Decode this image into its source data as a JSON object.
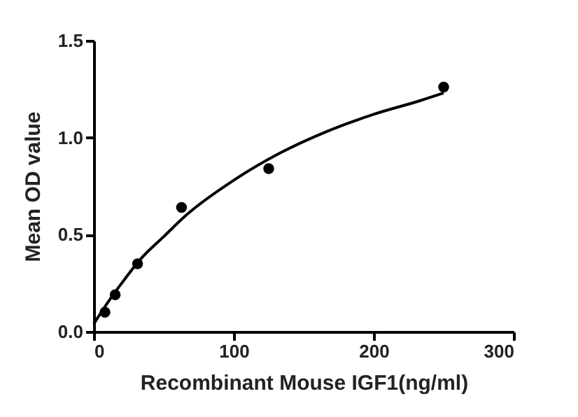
{
  "chart_data": {
    "type": "scatter",
    "xlabel": "Recombinant Mouse IGF1(ng/ml)",
    "ylabel": "Mean OD value",
    "xlim": [
      0,
      300
    ],
    "xticks": [
      0,
      100,
      200,
      300
    ],
    "ylim": [
      0,
      1.5
    ],
    "yticks": [
      {
        "value": 0,
        "label": "0.0"
      },
      0.5,
      {
        "value": 1,
        "label": "1.0"
      },
      1.5
    ],
    "grid": false,
    "series": [
      {
        "color": "#000000",
        "marker": "circle",
        "x": [
          8,
          15.3,
          31.3,
          62.7,
          125,
          250
        ],
        "values": [
          0.1,
          0.19,
          0.35,
          0.64,
          0.84,
          1.26
        ]
      },
      {
        "type": "line",
        "color": "#000000",
        "marker": "none",
        "line_style": "solid",
        "x": [
          0,
          10,
          20,
          33,
          50,
          66,
          100,
          133,
          166,
          200,
          233,
          250
        ],
        "values": [
          0.04,
          0.15,
          0.25,
          0.37,
          0.49,
          0.6,
          0.78,
          0.92,
          1.03,
          1.12,
          1.19,
          1.23
        ]
      }
    ]
  }
}
